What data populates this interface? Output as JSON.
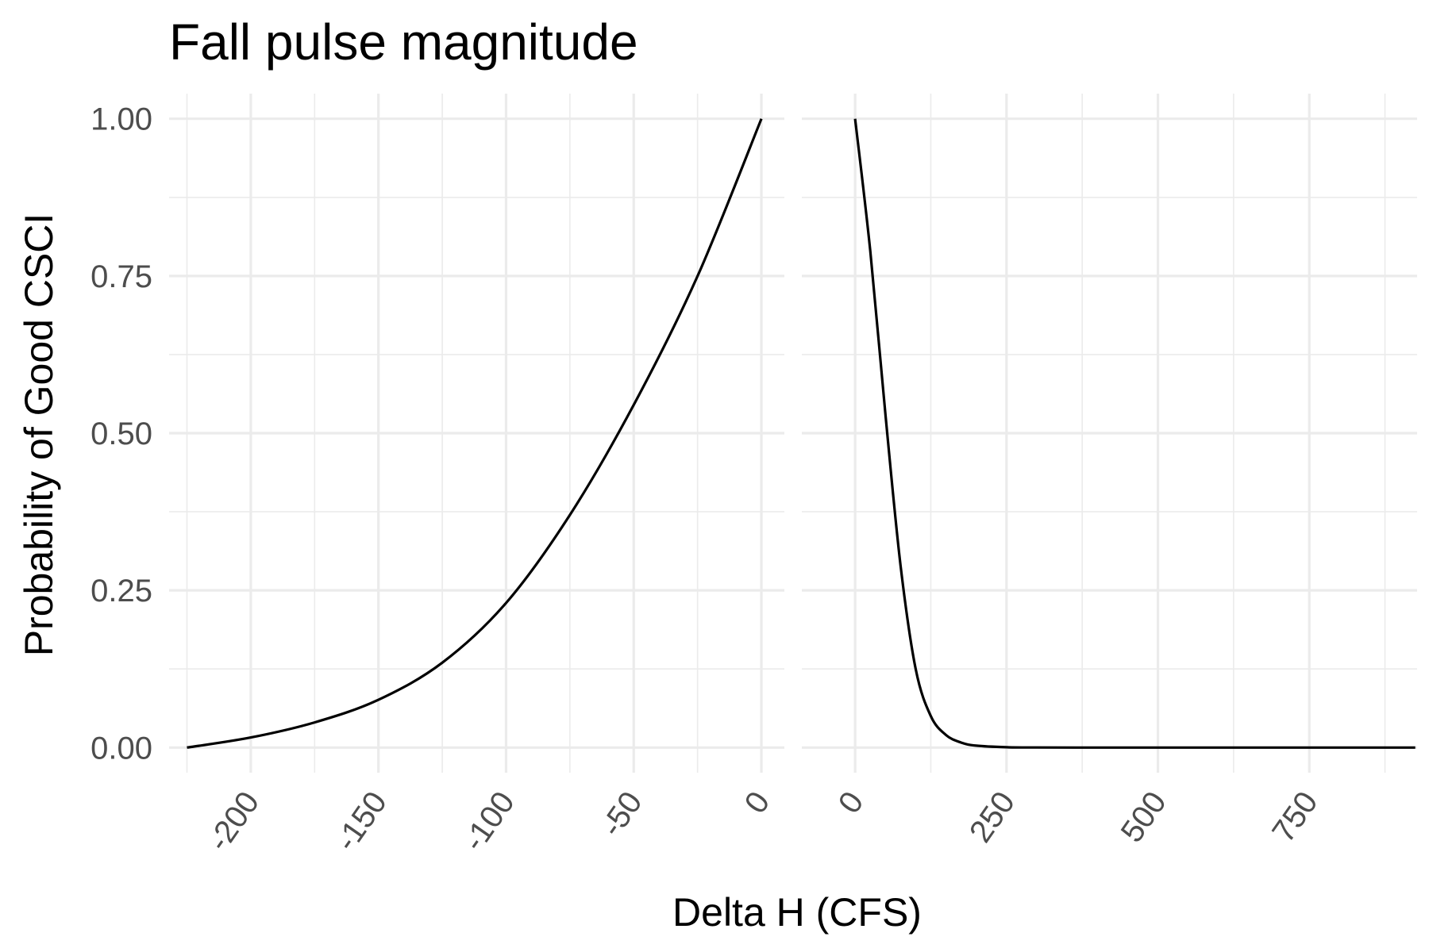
{
  "chart_data": {
    "type": "line",
    "title": "Fall pulse magnitude",
    "xlabel": "Delta H (CFS)",
    "ylabel": "Probability of Good CSCI",
    "ylim": [
      -0.04,
      1.04
    ],
    "yticks": [
      "0.00",
      "0.25",
      "0.50",
      "0.75",
      "1.00"
    ],
    "grid": true,
    "panels": [
      {
        "xlim": [
          -232,
          9
        ],
        "xticks": [
          "-200",
          "-150",
          "-100",
          "-50",
          "0"
        ],
        "series": [
          {
            "x": [
              -225,
              -200,
              -175,
              -150,
              -125,
              -100,
              -75,
              -50,
              -25,
              0
            ],
            "y": [
              0.0,
              0.016,
              0.04,
              0.076,
              0.135,
              0.23,
              0.37,
              0.545,
              0.75,
              1.0
            ]
          }
        ]
      },
      {
        "xlim": [
          -88,
          928
        ],
        "xticks": [
          "0",
          "250",
          "500",
          "750"
        ],
        "series": [
          {
            "x": [
              0,
              25,
              50,
              75,
              100,
              125,
              150,
              175,
              200,
              250,
              300,
              400,
              500,
              750,
              925
            ],
            "y": [
              1.0,
              0.79,
              0.53,
              0.29,
              0.125,
              0.05,
              0.02,
              0.008,
              0.003,
              0.0005,
              0.0001,
              0.0,
              0.0,
              0.0,
              0.0
            ]
          }
        ]
      }
    ]
  }
}
